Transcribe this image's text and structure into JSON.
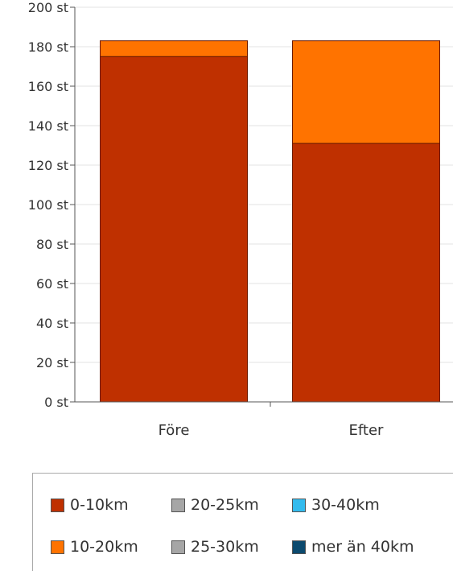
{
  "chart_data": {
    "type": "bar",
    "stacked": true,
    "categories": [
      "Före",
      "Efter"
    ],
    "series": [
      {
        "name": "0-10km",
        "color": "#bf3000",
        "values": [
          175,
          131
        ]
      },
      {
        "name": "10-20km",
        "color": "#ff7300",
        "values": [
          8,
          52
        ]
      },
      {
        "name": "20-25km",
        "color": "#a6a6a6",
        "values": [
          0,
          0
        ]
      },
      {
        "name": "25-30km",
        "color": "#a6a6a6",
        "values": [
          0,
          0
        ]
      },
      {
        "name": "30-40km",
        "color": "#33bbee",
        "values": [
          0,
          0
        ]
      },
      {
        "name": "mer än 40km",
        "color": "#0c4a6e",
        "values": [
          0,
          0
        ]
      }
    ],
    "y_ticks": [
      "0 st",
      "20 st",
      "40 st",
      "60 st",
      "80 st",
      "100 st",
      "120 st",
      "140 st",
      "160 st",
      "180 st",
      "200 st"
    ],
    "ylim": [
      0,
      200
    ],
    "grid": true,
    "legend_position": "bottom"
  }
}
